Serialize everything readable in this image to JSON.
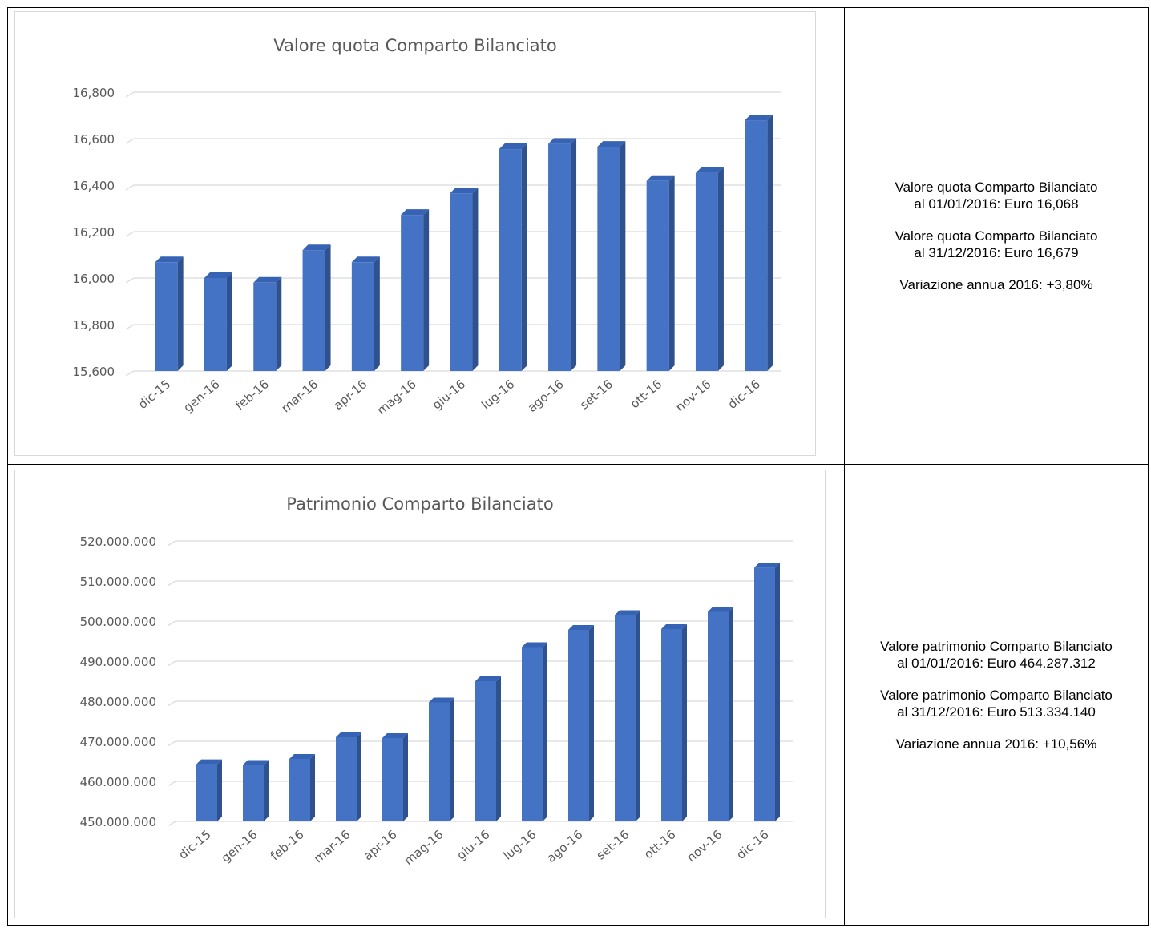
{
  "colors": {
    "bar_front": "#4472c4",
    "bar_side": "#2f528f",
    "bar_top": "#3763b5",
    "grid": "#d9d9d9",
    "axis_text": "#595959"
  },
  "chart_data": [
    {
      "type": "bar",
      "title": "Valore quota Comparto Bilanciato",
      "categories": [
        "dic-15",
        "gen-16",
        "feb-16",
        "mar-16",
        "apr-16",
        "mag-16",
        "giu-16",
        "lug-16",
        "ago-16",
        "set-16",
        "ott-16",
        "nov-16",
        "dic-16"
      ],
      "values": [
        16.068,
        16.0,
        15.98,
        16.12,
        16.068,
        16.272,
        16.365,
        16.555,
        16.578,
        16.565,
        16.418,
        16.452,
        16.679
      ],
      "ylim": [
        15.6,
        16.8
      ],
      "yticks": [
        15.6,
        15.8,
        16.0,
        16.2,
        16.4,
        16.6,
        16.8
      ],
      "ytick_labels": [
        "15,600",
        "15,800",
        "16,000",
        "16,200",
        "16,400",
        "16,600",
        "16,800"
      ],
      "grid": true
    },
    {
      "type": "bar",
      "title": "Patrimonio Comparto Bilanciato",
      "categories": [
        "dic-15",
        "gen-16",
        "feb-16",
        "mar-16",
        "apr-16",
        "mag-16",
        "giu-16",
        "lug-16",
        "ago-16",
        "set-16",
        "ott-16",
        "nov-16",
        "dic-16"
      ],
      "values": [
        464287312,
        464100000,
        465600000,
        471000000,
        470800000,
        479700000,
        485000000,
        493500000,
        497800000,
        501500000,
        498000000,
        502300000,
        513334140
      ],
      "ylim": [
        450000000,
        520000000
      ],
      "yticks": [
        450000000,
        460000000,
        470000000,
        480000000,
        490000000,
        500000000,
        510000000,
        520000000
      ],
      "ytick_labels": [
        "450.000.000",
        "460.000.000",
        "470.000.000",
        "480.000.000",
        "490.000.000",
        "500.000.000",
        "510.000.000",
        "520.000.000"
      ],
      "grid": true
    }
  ],
  "notes": [
    {
      "start_line1": "Valore quota Comparto Bilanciato",
      "start_line2": "al 01/01/2016: Euro 16,068",
      "end_line1": "Valore quota Comparto Bilanciato",
      "end_line2": "al 31/12/2016: Euro 16,679",
      "variation": "Variazione annua 2016: +3,80%"
    },
    {
      "start_line1": "Valore patrimonio Comparto Bilanciato",
      "start_line2": "al 01/01/2016: Euro 464.287.312",
      "end_line1": "Valore patrimonio Comparto Bilanciato",
      "end_line2": "al 31/12/2016: Euro 513.334.140",
      "variation": "Variazione annua 2016: +10,56%"
    }
  ]
}
